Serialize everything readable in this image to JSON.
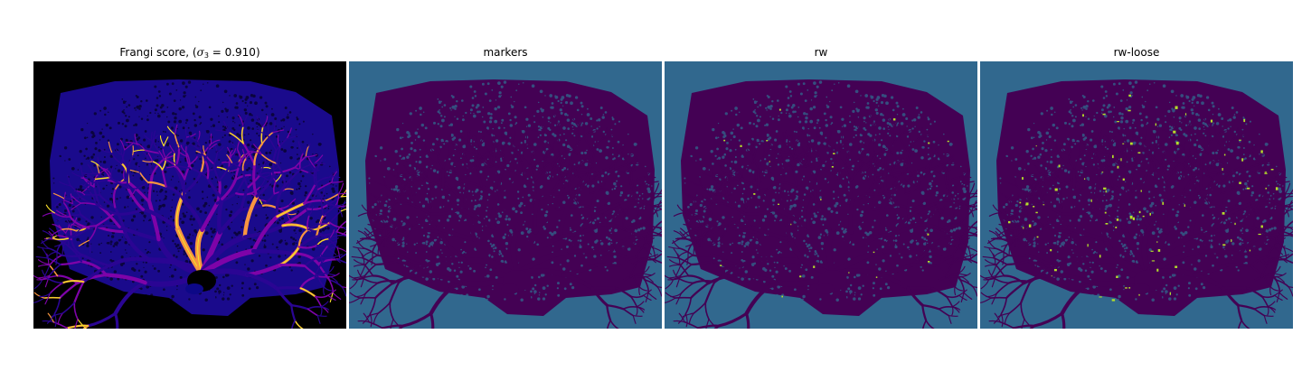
{
  "panels": [
    {
      "title_prefix": "Frangi score, (",
      "title_symbol": "σ",
      "title_subscript": "3",
      "title_suffix": " = 0.910)",
      "colormap": "plasma",
      "background": "#000000"
    },
    {
      "title": "markers",
      "colormap": "viridis",
      "background": "#31688e"
    },
    {
      "title": "rw",
      "colormap": "viridis",
      "background": "#31688e"
    },
    {
      "title": "rw-loose",
      "colormap": "viridis",
      "background": "#31688e"
    }
  ],
  "colors": {
    "frangi_tissue": "#1a0a8c",
    "frangi_vessel_dark": "#0d0887",
    "frangi_vessel_mid": "#7e03a8",
    "frangi_vessel_hot": "#f89540",
    "frangi_vessel_peak": "#f0f921",
    "viridis_tissue": "#440154",
    "viridis_background": "#31688e",
    "viridis_highlight": "#b5de2b"
  }
}
